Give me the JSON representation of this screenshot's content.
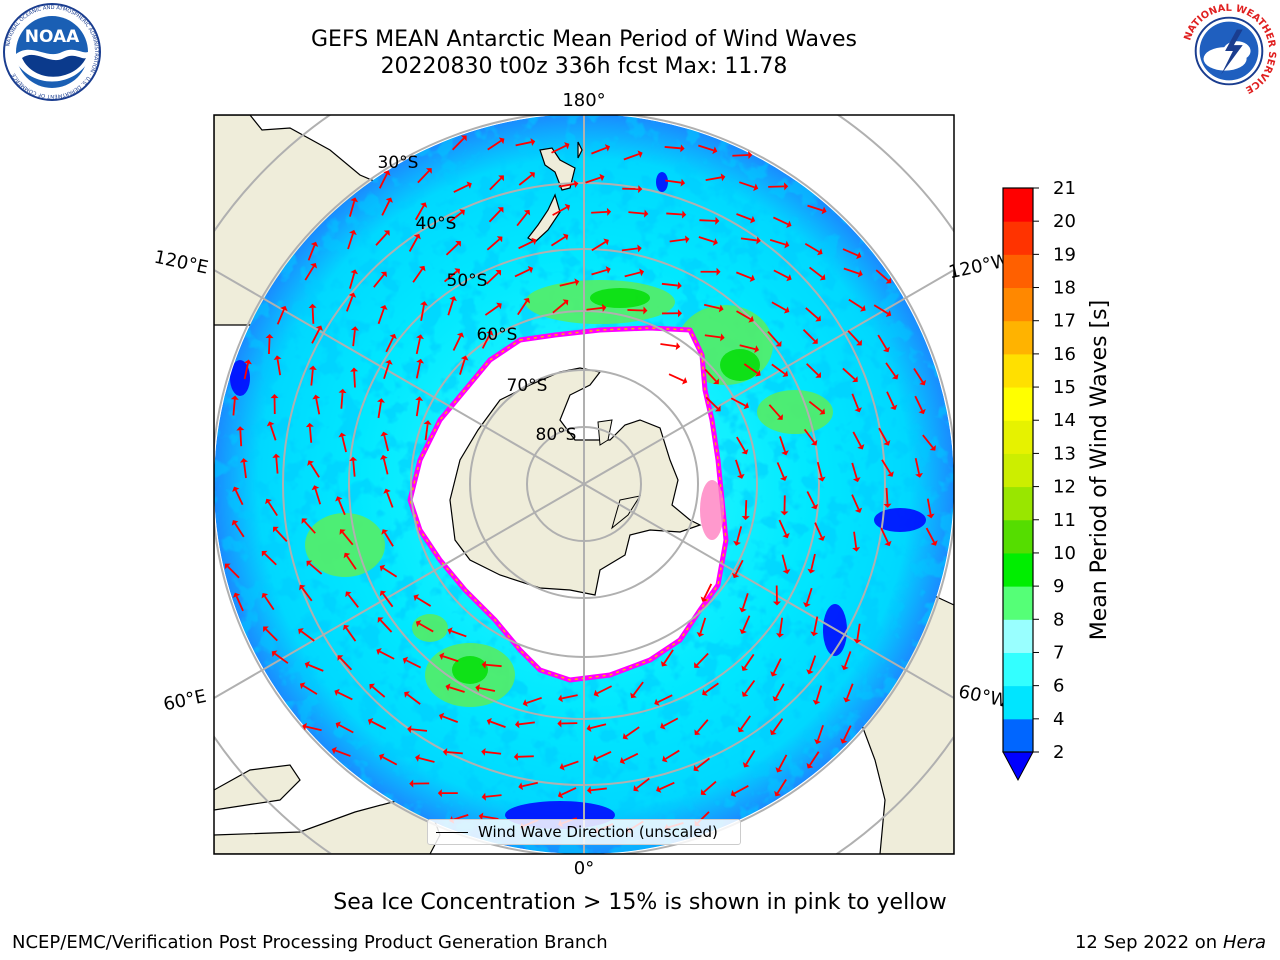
{
  "header": {
    "title_line1": "GEFS MEAN Antarctic Mean Period of Wind Waves",
    "title_line2": "20220830 t00z 336h fcst   Max: 11.78"
  },
  "logos": {
    "left": {
      "name": "noaa-logo",
      "text": "NOAA",
      "ring_text": "NATIONAL OCEANIC AND ATMOSPHERIC ADMINISTRATION · U.S. DEPARTMENT OF COMMERCE"
    },
    "right": {
      "name": "nws-logo",
      "ring_text": "NATIONAL WEATHER SERVICE"
    }
  },
  "map": {
    "projection": "south-polar-stereographic",
    "longitude_labels": [
      "180°",
      "120°E",
      "120°W",
      "60°E",
      "60°W",
      "0°"
    ],
    "latitude_labels": [
      "30°S",
      "40°S",
      "50°S",
      "60°S",
      "70°S",
      "80°S"
    ],
    "legend_label": "Wind Wave Direction (unscaled)",
    "colors": {
      "land": "#efedda",
      "ocean_under_ice": "#ffffff",
      "sea_ice_edge": [
        "#ff00ff",
        "#ffaa00",
        "#ffe000"
      ],
      "arrows": "#ff0000",
      "grid": "#b0b0b0"
    }
  },
  "colorbar": {
    "label": "Mean Period of Wind Waves [s]",
    "ticks": [
      "2",
      "4",
      "6",
      "7",
      "8",
      "9",
      "10",
      "11",
      "12",
      "13",
      "14",
      "15",
      "16",
      "17",
      "18",
      "19",
      "20",
      "21"
    ],
    "colors": [
      "#0066ff",
      "#00e5ff",
      "#33ffff",
      "#99ffff",
      "#55ff77",
      "#00ee00",
      "#55dd00",
      "#99e600",
      "#ccee00",
      "#e6f200",
      "#ffff00",
      "#ffe000",
      "#ffb300",
      "#ff8800",
      "#ff6000",
      "#ff3300",
      "#ff0000"
    ],
    "under_color": "#0000ff"
  },
  "footer": {
    "note": "Sea Ice Concentration > 15% is shown in pink to yellow",
    "credit_left": "NCEP/EMC/Verification Post Processing Product Generation Branch",
    "credit_date": "12 Sep 2022 on",
    "credit_machine": "Hera"
  }
}
